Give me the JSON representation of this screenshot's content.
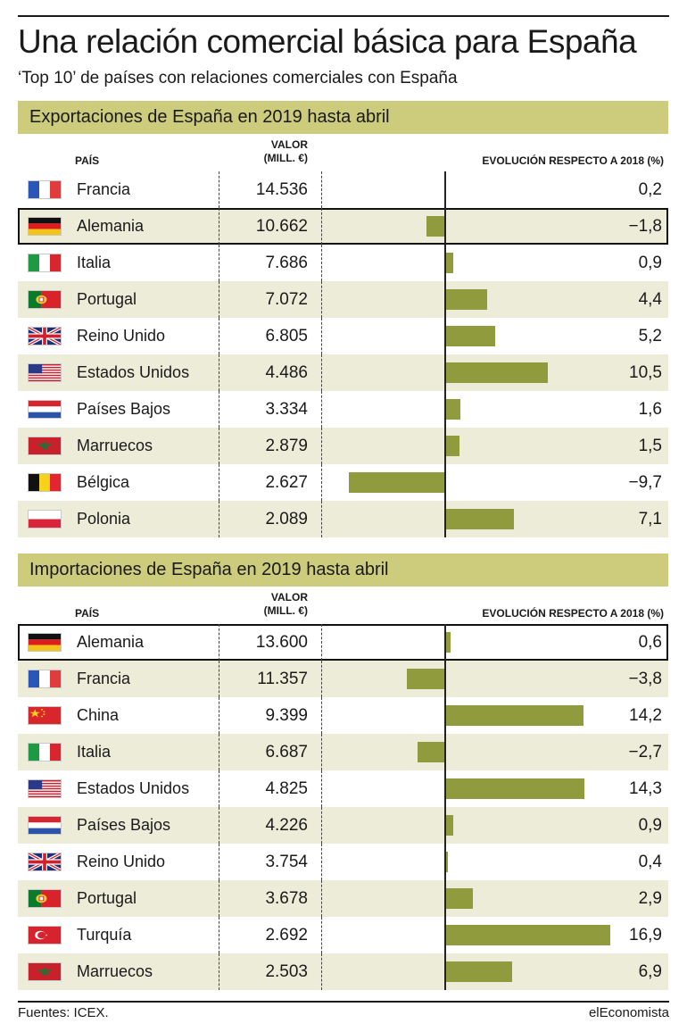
{
  "title": "Una relación comercial básica para España",
  "subtitle": "‘Top 10’ de países con relaciones comerciales con España",
  "columns": {
    "pais": "PAÍS",
    "valor_line1": "VALOR",
    "valor_line2": "(MILL. €)",
    "evolucion": "EVOLUCIÓN RESPECTO A 2018 (%)"
  },
  "footer": {
    "source": "Fuentes: ICEX.",
    "brand": "elEconomista"
  },
  "colors": {
    "bar": "#8f9b3c",
    "header_band": "#cdcb7c",
    "row_shade": "#edecd9"
  },
  "chart_data": [
    {
      "type": "table",
      "title": "Exportaciones de España en 2019 hasta abril",
      "highlight": "Alemania",
      "rows": [
        {
          "country": "Francia",
          "flag": "fr",
          "value": "14.536",
          "change": 0.2,
          "change_label": "0,2"
        },
        {
          "country": "Alemania",
          "flag": "de",
          "value": "10.662",
          "change": -1.8,
          "change_label": "−1,8"
        },
        {
          "country": "Italia",
          "flag": "it",
          "value": "7.686",
          "change": 0.9,
          "change_label": "0,9"
        },
        {
          "country": "Portugal",
          "flag": "pt",
          "value": "7.072",
          "change": 4.4,
          "change_label": "4,4"
        },
        {
          "country": "Reino Unido",
          "flag": "uk",
          "value": "6.805",
          "change": 5.2,
          "change_label": "5,2"
        },
        {
          "country": "Estados Unidos",
          "flag": "us",
          "value": "4.486",
          "change": 10.5,
          "change_label": "10,5"
        },
        {
          "country": "Países Bajos",
          "flag": "nl",
          "value": "3.334",
          "change": 1.6,
          "change_label": "1,6"
        },
        {
          "country": "Marruecos",
          "flag": "ma",
          "value": "2.879",
          "change": 1.5,
          "change_label": "1,5"
        },
        {
          "country": "Bélgica",
          "flag": "be",
          "value": "2.627",
          "change": -9.7,
          "change_label": "−9,7"
        },
        {
          "country": "Polonia",
          "flag": "pl",
          "value": "2.089",
          "change": 7.1,
          "change_label": "7,1"
        }
      ]
    },
    {
      "type": "table",
      "title": "Importaciones de España en 2019 hasta abril",
      "highlight": "Alemania",
      "rows": [
        {
          "country": "Alemania",
          "flag": "de",
          "value": "13.600",
          "change": 0.6,
          "change_label": "0,6"
        },
        {
          "country": "Francia",
          "flag": "fr",
          "value": "11.357",
          "change": -3.8,
          "change_label": "−3,8"
        },
        {
          "country": "China",
          "flag": "cn",
          "value": "9.399",
          "change": 14.2,
          "change_label": "14,2"
        },
        {
          "country": "Italia",
          "flag": "it",
          "value": "6.687",
          "change": -2.7,
          "change_label": "−2,7"
        },
        {
          "country": "Estados Unidos",
          "flag": "us",
          "value": "4.825",
          "change": 14.3,
          "change_label": "14,3"
        },
        {
          "country": "Países Bajos",
          "flag": "nl",
          "value": "4.226",
          "change": 0.9,
          "change_label": "0,9"
        },
        {
          "country": "Reino Unido",
          "flag": "uk",
          "value": "3.754",
          "change": 0.4,
          "change_label": "0,4"
        },
        {
          "country": "Portugal",
          "flag": "pt",
          "value": "3.678",
          "change": 2.9,
          "change_label": "2,9"
        },
        {
          "country": "Turquía",
          "flag": "tr",
          "value": "2.692",
          "change": 16.9,
          "change_label": "16,9"
        },
        {
          "country": "Marruecos",
          "flag": "ma",
          "value": "2.503",
          "change": 6.9,
          "change_label": "6,9"
        }
      ]
    }
  ]
}
